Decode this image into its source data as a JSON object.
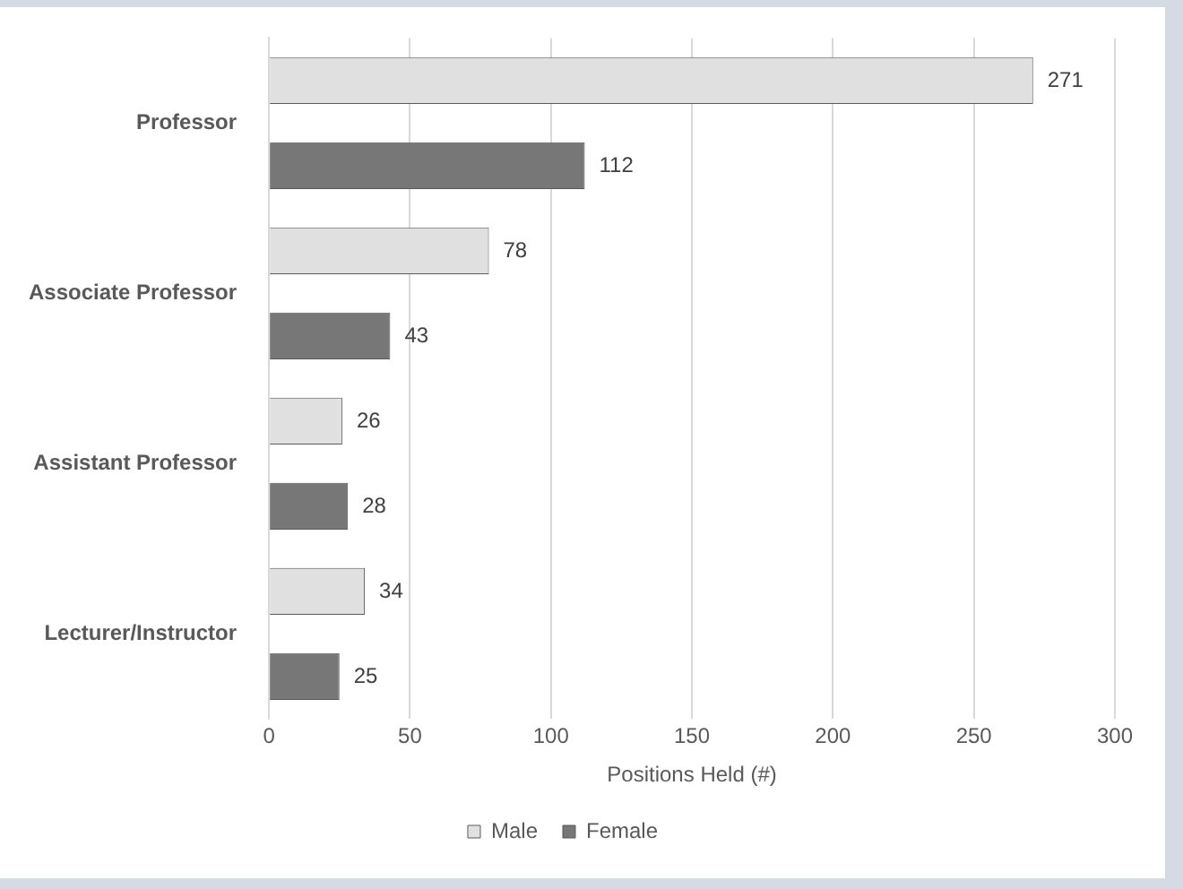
{
  "chart_data": {
    "type": "bar",
    "orientation": "horizontal",
    "xlabel": "Positions Held (#)",
    "categories": [
      "Professor",
      "Associate Professor",
      "Assistant Professor",
      "Lecturer/Instructor"
    ],
    "series": [
      {
        "name": "Male",
        "color": "#e0e0e0",
        "values": [
          271,
          78,
          26,
          34
        ]
      },
      {
        "name": "Female",
        "color": "#777777",
        "values": [
          112,
          43,
          28,
          25
        ]
      }
    ],
    "xlim": [
      0,
      300
    ],
    "xticks": [
      0,
      50,
      100,
      150,
      200,
      250,
      300
    ],
    "grid": "x",
    "legend": "bottom",
    "data_labels": true
  }
}
